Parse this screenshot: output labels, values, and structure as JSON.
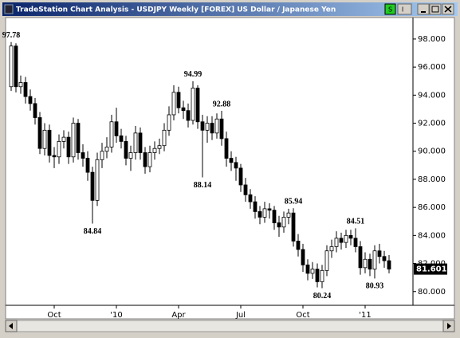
{
  "chart_data": {
    "type": "candlestick",
    "title": "TradeStation Chart Analysis - USDJPY Weekly [FOREX] US Dollar / Japanese Yen",
    "toolbar": [
      "S",
      "I"
    ],
    "categories": [
      null,
      null,
      null,
      null,
      null,
      null,
      null,
      null,
      null,
      "Oct",
      null,
      null,
      null,
      null,
      null,
      null,
      null,
      null,
      null,
      null,
      null,
      null,
      "'10",
      null,
      null,
      null,
      null,
      null,
      null,
      null,
      null,
      null,
      null,
      null,
      null,
      "Apr",
      null,
      null,
      null,
      null,
      null,
      null,
      null,
      null,
      null,
      null,
      null,
      null,
      "Jul",
      null,
      null,
      null,
      null,
      null,
      null,
      null,
      null,
      null,
      null,
      null,
      null,
      "Oct",
      null,
      null,
      null,
      null,
      null,
      null,
      null,
      null,
      null,
      null,
      null,
      null,
      "'11",
      null,
      null,
      null,
      null,
      null
    ],
    "open": [
      94.6,
      97.5,
      94.6,
      94.9,
      93.9,
      93.4,
      92.4,
      90.2,
      91.5,
      89.7,
      89.6,
      90.7,
      91.0,
      89.6,
      92.0,
      89.9,
      89.5,
      88.5,
      86.5,
      89.4,
      90.0,
      90.3,
      92.1,
      91.1,
      90.7,
      89.5,
      89.9,
      91.3,
      89.9,
      88.9,
      89.9,
      90.2,
      90.4,
      91.5,
      92.6,
      94.2,
      93.1,
      92.9,
      92.2,
      94.5,
      92.1,
      91.5,
      92.0,
      91.3,
      92.3,
      90.9,
      89.5,
      89.2,
      88.8,
      87.6,
      86.9,
      86.4,
      85.7,
      85.3,
      85.9,
      85.8,
      84.9,
      84.6,
      85.3,
      85.6,
      83.6,
      83.0,
      81.9,
      81.3,
      81.6,
      80.7,
      81.5,
      82.9,
      83.2,
      83.8,
      83.5,
      84.0,
      83.8,
      83.2,
      81.7,
      82.3,
      81.6,
      82.9,
      82.5,
      82.2
    ],
    "high": [
      97.78,
      97.7,
      95.4,
      95.3,
      94.4,
      93.8,
      92.8,
      92.0,
      91.9,
      90.3,
      91.2,
      91.5,
      91.4,
      92.4,
      92.3,
      90.5,
      90.0,
      88.9,
      89.9,
      90.6,
      91.0,
      92.6,
      93.1,
      91.6,
      91.1,
      90.4,
      91.8,
      91.7,
      90.3,
      90.4,
      90.7,
      90.9,
      92.0,
      93.2,
      94.7,
      94.6,
      93.6,
      93.4,
      94.99,
      94.7,
      92.6,
      92.5,
      92.5,
      92.7,
      92.88,
      91.4,
      90.0,
      89.6,
      89.1,
      88.1,
      87.3,
      86.8,
      86.1,
      86.4,
      86.3,
      86.1,
      85.4,
      85.7,
      85.9,
      85.94,
      84.1,
      83.4,
      82.3,
      82.1,
      82.0,
      81.9,
      83.3,
      83.7,
      84.3,
      84.2,
      84.4,
      84.4,
      84.51,
      83.6,
      82.8,
      82.7,
      83.3,
      83.4,
      82.9,
      82.6
    ],
    "low": [
      94.3,
      94.2,
      94.1,
      93.4,
      92.9,
      91.9,
      89.8,
      89.7,
      89.2,
      88.8,
      89.1,
      90.2,
      89.1,
      89.2,
      89.4,
      88.9,
      87.9,
      84.84,
      86.1,
      88.8,
      89.5,
      89.9,
      90.6,
      90.2,
      89.0,
      88.6,
      89.4,
      89.4,
      88.4,
      88.5,
      89.4,
      89.8,
      90.0,
      91.1,
      92.2,
      92.7,
      92.3,
      91.7,
      91.9,
      91.6,
      88.14,
      90.6,
      90.8,
      90.9,
      90.4,
      88.9,
      88.6,
      87.9,
      87.1,
      86.4,
      85.9,
      85.2,
      84.8,
      84.9,
      85.2,
      84.4,
      83.9,
      84.2,
      84.8,
      83.2,
      82.5,
      81.4,
      80.8,
      80.9,
      80.3,
      80.24,
      81.1,
      82.4,
      82.8,
      83.0,
      83.1,
      83.3,
      82.8,
      81.2,
      81.3,
      81.1,
      80.93,
      82.0,
      81.7,
      81.3
    ],
    "close": [
      97.5,
      94.6,
      94.9,
      93.9,
      93.4,
      92.4,
      90.2,
      91.5,
      89.7,
      89.6,
      90.7,
      91.0,
      89.6,
      92.0,
      89.9,
      89.5,
      88.5,
      86.5,
      89.4,
      90.0,
      90.3,
      92.1,
      91.1,
      90.7,
      89.5,
      89.9,
      91.3,
      89.9,
      88.9,
      89.9,
      90.2,
      90.4,
      91.5,
      92.6,
      94.2,
      93.1,
      92.9,
      92.2,
      94.5,
      92.1,
      91.5,
      92.0,
      91.3,
      92.3,
      90.9,
      89.5,
      89.2,
      88.8,
      87.6,
      86.9,
      86.4,
      85.7,
      85.3,
      85.9,
      85.8,
      84.9,
      84.6,
      85.3,
      85.6,
      83.6,
      83.0,
      81.9,
      81.3,
      81.6,
      80.7,
      81.5,
      82.9,
      83.2,
      83.8,
      83.5,
      84.0,
      83.8,
      83.2,
      81.7,
      82.3,
      81.6,
      82.9,
      82.5,
      82.2,
      81.601
    ],
    "high_labels": [
      "97.78",
      null,
      null,
      null,
      null,
      null,
      null,
      null,
      null,
      null,
      null,
      null,
      null,
      null,
      null,
      null,
      null,
      null,
      null,
      null,
      null,
      null,
      null,
      null,
      null,
      null,
      null,
      null,
      null,
      null,
      null,
      null,
      null,
      null,
      null,
      null,
      null,
      null,
      "94.99",
      null,
      null,
      null,
      null,
      null,
      "92.88",
      null,
      null,
      null,
      null,
      null,
      null,
      null,
      null,
      null,
      null,
      null,
      null,
      null,
      null,
      "85.94",
      null,
      null,
      null,
      null,
      null,
      null,
      null,
      null,
      null,
      null,
      null,
      null,
      "84.51",
      null,
      null,
      null,
      null,
      null,
      null,
      null
    ],
    "low_labels": [
      null,
      null,
      null,
      null,
      null,
      null,
      null,
      null,
      null,
      null,
      null,
      null,
      null,
      null,
      null,
      null,
      null,
      "84.84",
      null,
      null,
      null,
      null,
      null,
      null,
      null,
      null,
      null,
      null,
      null,
      null,
      null,
      null,
      null,
      null,
      null,
      null,
      null,
      null,
      null,
      null,
      "88.14",
      null,
      null,
      null,
      null,
      null,
      null,
      null,
      null,
      null,
      null,
      null,
      null,
      null,
      null,
      null,
      null,
      null,
      null,
      null,
      null,
      null,
      null,
      null,
      null,
      "80.24",
      null,
      null,
      null,
      null,
      null,
      null,
      null,
      null,
      null,
      null,
      "80.93",
      null,
      null,
      null
    ],
    "up_color": "#ffffff",
    "down_color": "#000000",
    "last_price_label": "81.601",
    "ylim": [
      79.02,
      99.53
    ],
    "yticks": [
      {
        "value": 80,
        "label": "80.000"
      },
      {
        "value": 82,
        "label": "82.000"
      },
      {
        "value": 84,
        "label": "84.000"
      },
      {
        "value": 86,
        "label": "86.000"
      },
      {
        "value": 88,
        "label": "88.000"
      },
      {
        "value": 90,
        "label": "90.000"
      },
      {
        "value": 92,
        "label": "92.000"
      },
      {
        "value": 94,
        "label": "94.000"
      },
      {
        "value": 96,
        "label": "96.000"
      },
      {
        "value": 98,
        "label": "98.000"
      }
    ],
    "grid": false
  }
}
